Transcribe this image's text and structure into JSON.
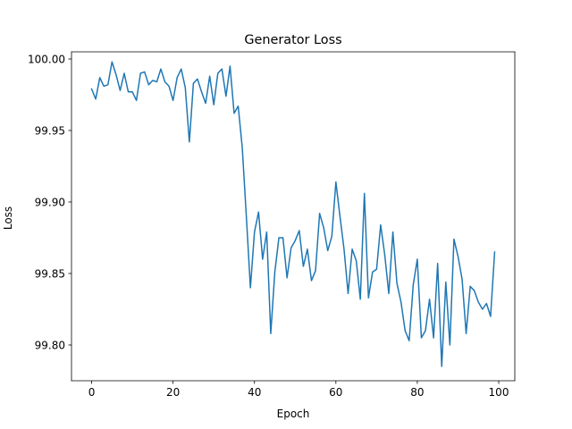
{
  "chart_data": {
    "type": "line",
    "title": "Generator Loss",
    "xlabel": "Epoch",
    "ylabel": "Loss",
    "xlim": [
      -4.95,
      103.95
    ],
    "ylim": [
      99.775,
      100.005
    ],
    "xticks": [
      0,
      20,
      40,
      60,
      80,
      100
    ],
    "yticks": [
      99.8,
      99.85,
      99.9,
      99.95,
      100.0
    ],
    "xtick_labels": [
      "0",
      "20",
      "40",
      "60",
      "80",
      "100"
    ],
    "ytick_labels": [
      "99.80",
      "99.85",
      "99.90",
      "99.95",
      "100.00"
    ],
    "grid": false,
    "series": [
      {
        "color": "#1f77b4",
        "x": [
          0,
          1,
          2,
          3,
          4,
          5,
          6,
          7,
          8,
          9,
          10,
          11,
          12,
          13,
          14,
          15,
          16,
          17,
          18,
          19,
          20,
          21,
          22,
          23,
          24,
          25,
          26,
          27,
          28,
          29,
          30,
          31,
          32,
          33,
          34,
          35,
          36,
          37,
          38,
          39,
          40,
          41,
          42,
          43,
          44,
          45,
          46,
          47,
          48,
          49,
          50,
          51,
          52,
          53,
          54,
          55,
          56,
          57,
          58,
          59,
          60,
          61,
          62,
          63,
          64,
          65,
          66,
          67,
          68,
          69,
          70,
          71,
          72,
          73,
          74,
          75,
          76,
          77,
          78,
          79,
          80,
          81,
          82,
          83,
          84,
          85,
          86,
          87,
          88,
          89,
          90,
          91,
          92,
          93,
          94,
          95,
          96,
          97,
          98,
          99
        ],
        "y": [
          99.979,
          99.972,
          99.987,
          99.981,
          99.982,
          99.998,
          99.989,
          99.978,
          99.99,
          99.977,
          99.977,
          99.971,
          99.99,
          99.991,
          99.982,
          99.985,
          99.984,
          99.993,
          99.984,
          99.981,
          99.971,
          99.987,
          99.993,
          99.98,
          99.942,
          99.983,
          99.986,
          99.977,
          99.969,
          99.988,
          99.968,
          99.99,
          99.993,
          99.974,
          99.995,
          99.962,
          99.967,
          99.938,
          99.89,
          99.84,
          99.879,
          99.893,
          99.86,
          99.879,
          99.808,
          99.851,
          99.875,
          99.875,
          99.847,
          99.868,
          99.873,
          99.88,
          99.855,
          99.867,
          99.845,
          99.852,
          99.892,
          99.882,
          99.866,
          99.876,
          99.914,
          99.89,
          99.867,
          99.836,
          99.867,
          99.859,
          99.832,
          99.906,
          99.833,
          99.851,
          99.853,
          99.884,
          99.863,
          99.836,
          99.879,
          99.843,
          99.83,
          99.81,
          99.803,
          99.842,
          99.86,
          99.805,
          99.81,
          99.832,
          99.805,
          99.857,
          99.785,
          99.844,
          99.8,
          99.874,
          99.862,
          99.846,
          99.808,
          99.841,
          99.838,
          99.83,
          99.825,
          99.829,
          99.82,
          99.865
        ]
      }
    ]
  }
}
